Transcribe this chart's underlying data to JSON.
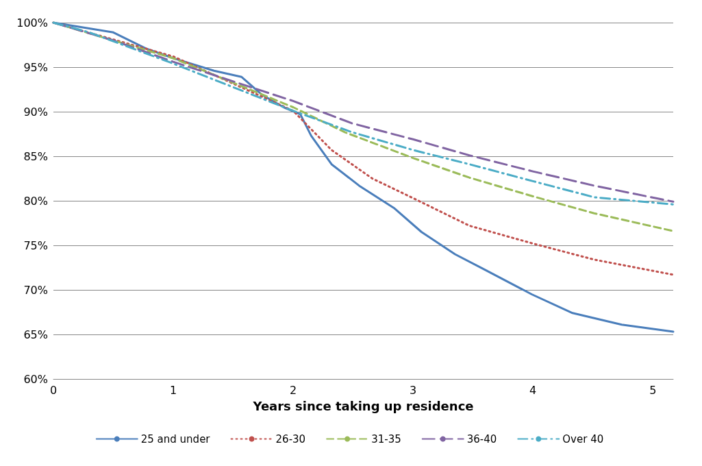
{
  "chart_data": {
    "type": "line",
    "xlabel": "Years since taking up residence",
    "xlim": [
      0,
      5.17
    ],
    "xticks": [
      0,
      1,
      2,
      3,
      4,
      5
    ],
    "ylim": [
      60,
      100
    ],
    "yticks": [
      {
        "value": 60,
        "label": "60%"
      },
      {
        "value": 65,
        "label": "65%"
      },
      {
        "value": 70,
        "label": "70%"
      },
      {
        "value": 75,
        "label": "75%"
      },
      {
        "value": 80,
        "label": "80%"
      },
      {
        "value": 85,
        "label": "85%"
      },
      {
        "value": 90,
        "label": "90%"
      },
      {
        "value": 95,
        "label": "95%"
      },
      {
        "value": 100,
        "label": "100%"
      }
    ],
    "grid": "y",
    "legend": "bottom",
    "marker": "none",
    "series": [
      {
        "name": "25 and under",
        "color": "#4a7ebb",
        "line_style": "solid",
        "x": [
          0,
          0.5,
          0.77,
          1,
          1.34,
          1.57,
          1.74,
          1.92,
          2.06,
          2.15,
          2.32,
          2.55,
          2.84,
          3.07,
          3.35,
          3.58,
          3.99,
          4.33,
          4.74,
          5.17
        ],
        "values": [
          100,
          98.9,
          97.1,
          96.0,
          94.6,
          93.9,
          91.9,
          90.5,
          89.7,
          87.3,
          84.1,
          81.7,
          79.2,
          76.5,
          74.0,
          72.4,
          69.5,
          67.4,
          66.1,
          65.3
        ]
      },
      {
        "name": "26-30",
        "color": "#c0504d",
        "line_style": "dotted",
        "x": [
          0,
          1,
          2,
          2.32,
          2.66,
          3,
          3.47,
          4,
          4.51,
          5.17
        ],
        "values": [
          100,
          96.2,
          90.1,
          85.7,
          82.5,
          80.3,
          77.2,
          75.2,
          73.4,
          71.7
        ]
      },
      {
        "name": "31-35",
        "color": "#9bbb59",
        "line_style": "dashed",
        "x": [
          0,
          1,
          2,
          2.43,
          3,
          3.47,
          4,
          4.51,
          5.17
        ],
        "values": [
          100,
          96.0,
          90.5,
          87.7,
          84.8,
          82.6,
          80.5,
          78.6,
          76.6
        ]
      },
      {
        "name": "36-40",
        "color": "#8064a2",
        "line_style": "longdash",
        "x": [
          0,
          0.5,
          1,
          2,
          2.49,
          3,
          3.47,
          4,
          4.51,
          5.17
        ],
        "values": [
          100,
          98.0,
          95.6,
          91.2,
          88.7,
          86.9,
          85.1,
          83.3,
          81.7,
          79.9
        ]
      },
      {
        "name": "Over 40",
        "color": "#4bacc6",
        "line_style": "dashdot",
        "x": [
          0,
          0.3,
          1,
          2,
          2.49,
          3,
          3.47,
          4,
          4.51,
          5.17
        ],
        "values": [
          100,
          98.9,
          95.4,
          90.1,
          87.7,
          85.7,
          84.1,
          82.2,
          80.4,
          79.6
        ]
      }
    ]
  }
}
